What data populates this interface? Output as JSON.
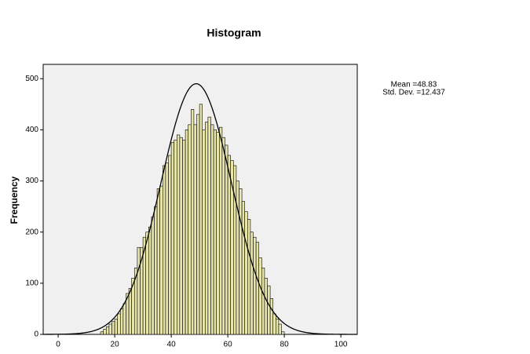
{
  "chart_data": {
    "type": "histogram",
    "title": "Histogram",
    "ylabel": "Frequency",
    "bins": [
      15,
      16,
      17,
      18,
      19,
      20,
      21,
      22,
      23,
      24,
      25,
      26,
      27,
      28,
      29,
      30,
      31,
      32,
      33,
      34,
      35,
      36,
      37,
      38,
      39,
      40,
      41,
      42,
      43,
      44,
      45,
      46,
      47,
      48,
      49,
      50,
      51,
      52,
      53,
      54,
      55,
      56,
      57,
      58,
      59,
      60,
      61,
      62,
      63,
      64,
      65,
      66,
      67,
      68,
      69,
      70,
      71,
      72,
      73,
      74,
      75,
      76,
      77,
      78,
      79,
      80
    ],
    "counts": [
      5,
      10,
      15,
      20,
      25,
      30,
      40,
      50,
      60,
      80,
      90,
      110,
      130,
      170,
      170,
      190,
      200,
      210,
      230,
      250,
      285,
      290,
      330,
      335,
      350,
      375,
      380,
      390,
      385,
      380,
      400,
      410,
      440,
      410,
      430,
      450,
      400,
      415,
      425,
      410,
      400,
      395,
      405,
      385,
      370,
      350,
      340,
      330,
      300,
      285,
      260,
      240,
      225,
      200,
      190,
      180,
      150,
      130,
      110,
      95,
      70,
      40,
      30,
      20,
      5
    ],
    "color": "#e8e5ab",
    "xlim": [
      -5.3,
      105.8
    ],
    "xticks": [
      0,
      20,
      40,
      60,
      80,
      100
    ],
    "ylim": [
      0,
      528
    ],
    "yticks": [
      0,
      100,
      200,
      300,
      400,
      500
    ],
    "stats": {
      "mean": {
        "value": 48.83,
        "label": "Mean =48.83"
      },
      "std_dev": {
        "value": 12.437,
        "label": "Std. Dev. =12.437"
      }
    },
    "normal_curve": true
  }
}
